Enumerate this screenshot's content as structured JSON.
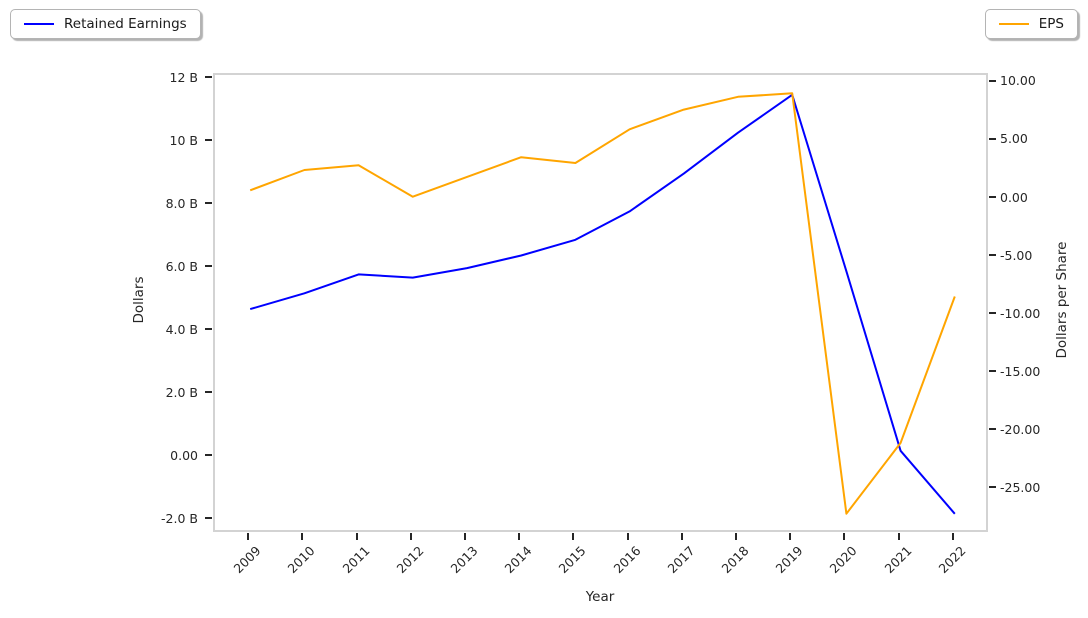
{
  "chart_data": {
    "type": "line",
    "title": "",
    "xlabel": "Year",
    "x_categories": [
      "2009",
      "2010",
      "2011",
      "2012",
      "2013",
      "2014",
      "2015",
      "2016",
      "2017",
      "2018",
      "2019",
      "2020",
      "2021",
      "2022"
    ],
    "x_pad_units": 0.65,
    "series": [
      {
        "name": "Retained Earnings",
        "axis": "left",
        "color": "#0000ff",
        "values": [
          4.7,
          5.2,
          5.8,
          5.7,
          6.0,
          6.4,
          6.9,
          7.8,
          9.0,
          10.3,
          11.5,
          5.9,
          0.2,
          -1.8
        ]
      },
      {
        "name": "EPS",
        "axis": "right",
        "color": "#ffa500",
        "values": [
          0.75,
          2.5,
          2.9,
          0.2,
          1.9,
          3.6,
          3.1,
          6.0,
          7.7,
          8.8,
          9.1,
          -27.1,
          -21.0,
          -8.4
        ]
      }
    ],
    "left_axis": {
      "label": "Dollars",
      "lim": [
        -2.44,
        12.13
      ],
      "ticks": [
        {
          "value": 12,
          "label": "12 B"
        },
        {
          "value": 10,
          "label": "10 B"
        },
        {
          "value": 8,
          "label": "8.0 B"
        },
        {
          "value": 6,
          "label": "6.0 B"
        },
        {
          "value": 4,
          "label": "4.0 B"
        },
        {
          "value": 2,
          "label": "2.0 B"
        },
        {
          "value": 0,
          "label": "0.00"
        },
        {
          "value": -2,
          "label": "-2.0 B"
        }
      ]
    },
    "right_axis": {
      "label": "Dollars per Share",
      "lim": [
        -28.85,
        10.68
      ],
      "ticks": [
        {
          "value": 10,
          "label": "10.00"
        },
        {
          "value": 5,
          "label": "5.00"
        },
        {
          "value": 0,
          "label": "0.00"
        },
        {
          "value": -5,
          "label": "-5.00"
        },
        {
          "value": -10,
          "label": "-10.00"
        },
        {
          "value": -15,
          "label": "-15.00"
        },
        {
          "value": -20,
          "label": "-20.00"
        },
        {
          "value": -25,
          "label": "-25.00"
        }
      ]
    },
    "legend": {
      "left_label": "Retained Earnings",
      "right_label": "EPS"
    },
    "grid": false,
    "spine_color": "#d3d3d3",
    "tick_color": "#262626"
  }
}
